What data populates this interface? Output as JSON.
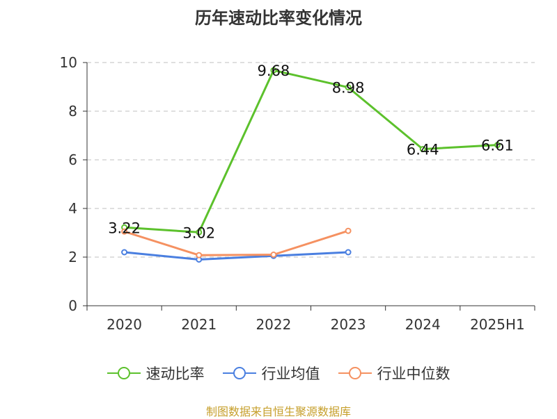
{
  "chart_data": {
    "type": "line",
    "title": "历年速动比率变化情况",
    "categories": [
      "2020",
      "2021",
      "2022",
      "2023",
      "2024",
      "2025H1"
    ],
    "ylim": [
      0,
      10
    ],
    "yticks": [
      0,
      2,
      4,
      6,
      8,
      10
    ],
    "ytick_labels": [
      "0",
      "2",
      "4",
      "6",
      "8",
      "10"
    ],
    "grid": true,
    "legend_position": "bottom",
    "series": [
      {
        "name": "速动比率",
        "color": "#5cc12c",
        "values": [
          3.22,
          3.02,
          9.68,
          8.98,
          6.44,
          6.61
        ],
        "labels": [
          "3.22",
          "3.02",
          "9.68",
          "8.98",
          "6.44",
          "6.61"
        ],
        "show_labels": true
      },
      {
        "name": "行业均值",
        "color": "#4a7fe0",
        "values": [
          2.2,
          1.9,
          2.05,
          2.2,
          null,
          null
        ],
        "show_labels": false
      },
      {
        "name": "行业中位数",
        "color": "#f59161",
        "values": [
          3.05,
          2.08,
          2.1,
          3.08,
          null,
          null
        ],
        "show_labels": false
      }
    ]
  },
  "source_text": "制图数据来自恒生聚源数据库"
}
